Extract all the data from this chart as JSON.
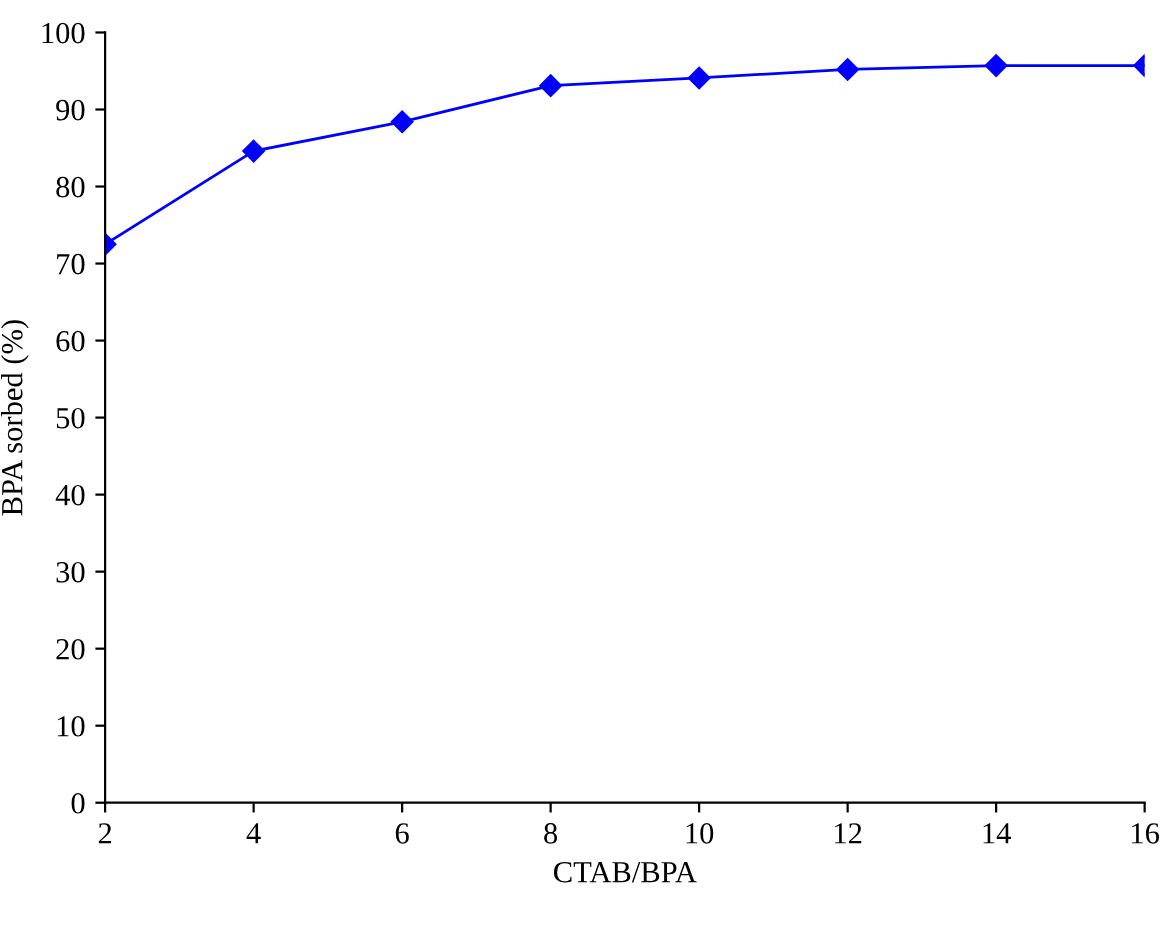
{
  "chart_data": {
    "type": "line",
    "xlabel": "CTAB/BPA",
    "ylabel": "BPA sorbed (%)",
    "x": [
      2,
      4,
      6,
      8,
      10,
      12,
      14,
      16
    ],
    "series": [
      {
        "color": "#0000ff",
        "values": [
          72.5,
          84.6,
          88.4,
          93.1,
          94.1,
          95.2,
          95.7,
          95.7
        ]
      }
    ],
    "xlim": [
      2,
      16
    ],
    "xticks": [
      2,
      4,
      6,
      8,
      10,
      12,
      14,
      16
    ],
    "ylim": [
      0,
      100
    ],
    "yticks": [
      0,
      10,
      20,
      30,
      40,
      50,
      60,
      70,
      80,
      90,
      100
    ],
    "marker": "diamond",
    "line_style": "solid",
    "grid": false,
    "legend": false
  }
}
